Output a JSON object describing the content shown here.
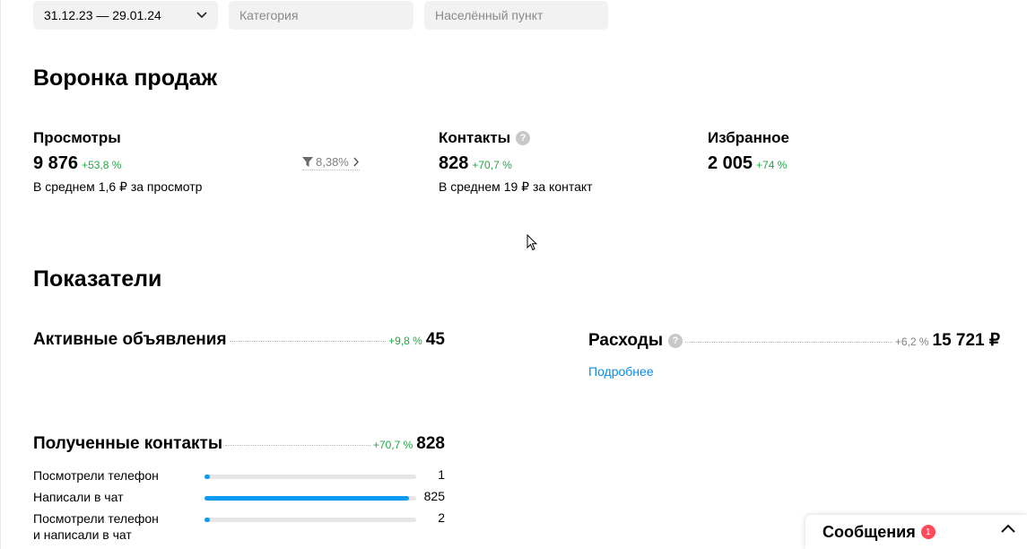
{
  "filters": {
    "date_range": "31.12.23 — 29.01.24",
    "category_placeholder": "Категория",
    "location_placeholder": "Населённый пункт"
  },
  "funnel": {
    "title": "Воронка продаж",
    "views": {
      "label": "Просмотры",
      "value": "9 876",
      "delta": "+53,8 %",
      "sub": "В среднем 1,6 ₽ за просмотр"
    },
    "conversion": "8,38%",
    "contacts": {
      "label": "Контакты",
      "value": "828",
      "delta": "+70,7 %",
      "sub": "В среднем 19 ₽ за контакт"
    },
    "favorites": {
      "label": "Избранное",
      "value": "2 005",
      "delta": "+74 %"
    }
  },
  "indicators": {
    "title": "Показатели",
    "active_ads": {
      "label": "Активные объявления",
      "delta": "+9,8 %",
      "value": "45"
    },
    "expenses": {
      "label": "Расходы",
      "delta": "+6,2 %",
      "value": "15 721 ₽",
      "link": "Подробнее"
    },
    "contacts_received": {
      "label": "Полученные контакты",
      "delta": "+70,7 %",
      "value": "828",
      "items": [
        {
          "label": "Посмотрели телефон",
          "value": "1",
          "share": 0.001
        },
        {
          "label": "Написали в чат",
          "value": "825",
          "share": 0.996
        },
        {
          "label": "Посмотрели телефон и написали в чат",
          "line1": "Посмотрели телефон",
          "line2": "и написали в чат",
          "value": "2",
          "share": 0.002
        }
      ]
    }
  },
  "messages": {
    "label": "Сообщения",
    "badge": "1"
  },
  "colors": {
    "accent": "#0a9af0",
    "positive": "#1fa944",
    "badge": "#ff4a5a"
  }
}
